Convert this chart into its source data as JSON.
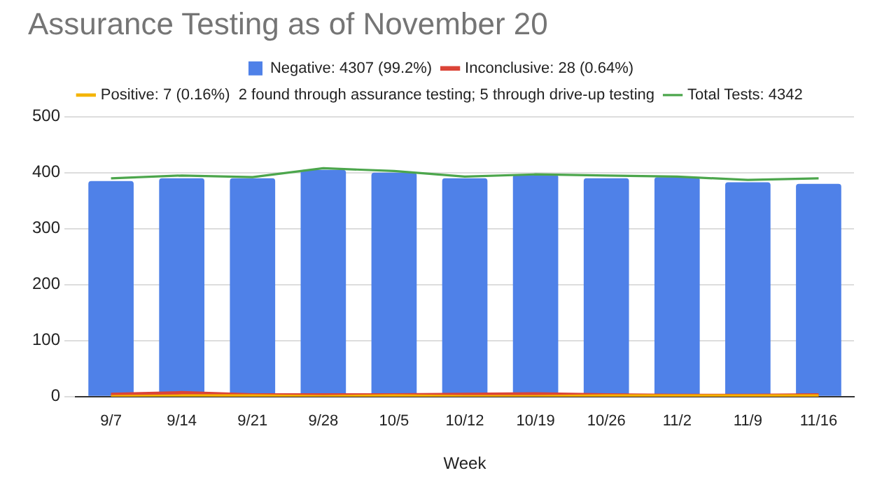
{
  "chart_data": {
    "type": "bar",
    "title": "Assurance Testing as of November 20",
    "xlabel": "Week",
    "categories": [
      "9/7",
      "9/14",
      "9/21",
      "9/28",
      "10/5",
      "10/12",
      "10/19",
      "10/26",
      "11/2",
      "11/9",
      "11/16"
    ],
    "series": [
      {
        "name": "Negative: 4307 (99.2%)",
        "color": "#4f81e8",
        "values": [
          385,
          390,
          390,
          405,
          400,
          390,
          397,
          390,
          392,
          383,
          380
        ]
      },
      {
        "name": "Inconclusive: 28 (0.64%)",
        "type": "line",
        "color": "#db4437",
        "values": [
          3,
          6,
          2,
          2,
          2,
          3,
          4,
          2,
          1,
          1,
          2
        ]
      },
      {
        "name": "Positive: 7 (0.16%)  2 found through assurance testing; 5 through drive-up testing",
        "type": "line",
        "color": "#f4b400",
        "values": [
          0,
          1,
          1,
          0,
          1,
          0,
          0,
          1,
          1,
          1,
          1
        ]
      },
      {
        "name": "Total Tests: 4342",
        "type": "line",
        "color": "#4ca64c",
        "values": [
          390,
          395,
          392,
          408,
          403,
          393,
          397,
          395,
          393,
          387,
          390
        ]
      }
    ],
    "ylim": [
      0,
      500
    ],
    "yticks": [
      0,
      100,
      200,
      300,
      400,
      500
    ],
    "grid": "y",
    "legend": "top",
    "marker": "none",
    "line_style": "solid"
  }
}
